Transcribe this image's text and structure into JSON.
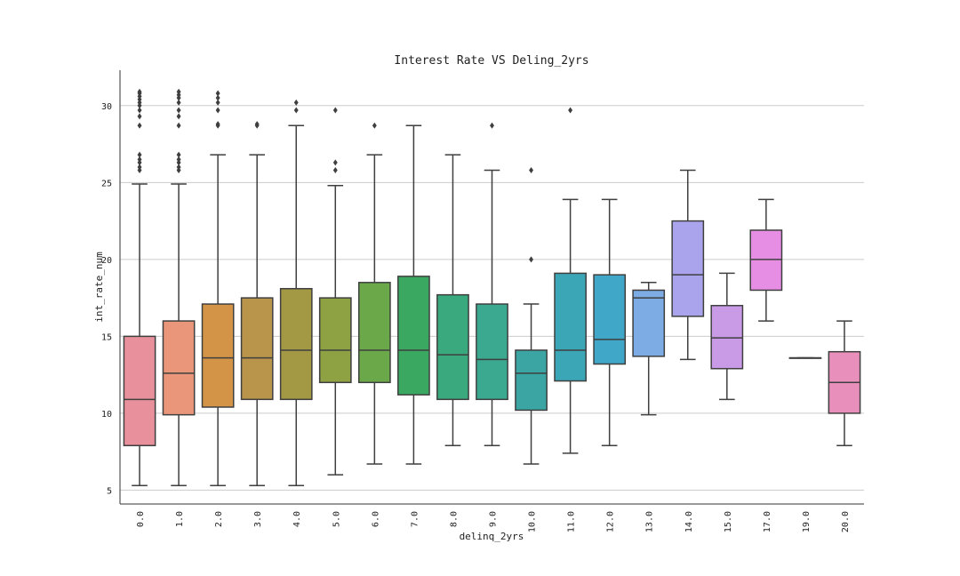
{
  "chart_data": {
    "type": "box",
    "title": "Interest Rate VS Deling_2yrs",
    "xlabel": "delinq_2yrs",
    "ylabel": "int_rate_num",
    "ylim": [
      4.1,
      32.3
    ],
    "yticks": [
      5,
      10,
      15,
      20,
      25,
      30
    ],
    "grid": "horizontal",
    "categories": [
      "0.0",
      "1.0",
      "2.0",
      "3.0",
      "4.0",
      "5.0",
      "6.0",
      "7.0",
      "8.0",
      "9.0",
      "10.0",
      "11.0",
      "12.0",
      "13.0",
      "14.0",
      "15.0",
      "17.0",
      "19.0",
      "20.0"
    ],
    "boxes": [
      {
        "category": "0.0",
        "whisker_low": 5.3,
        "q1": 7.9,
        "median": 10.9,
        "q3": 15.0,
        "whisker_high": 24.9,
        "outliers": [
          25.8,
          26.0,
          26.3,
          26.5,
          26.8,
          28.7,
          29.3,
          29.7,
          30.0,
          30.2,
          30.4,
          30.6,
          30.8,
          30.9
        ],
        "color": "#e8919c"
      },
      {
        "category": "1.0",
        "whisker_low": 5.3,
        "q1": 9.9,
        "median": 12.6,
        "q3": 16.0,
        "whisker_high": 24.9,
        "outliers": [
          25.8,
          26.0,
          26.3,
          26.5,
          26.8,
          28.7,
          29.3,
          29.7,
          30.2,
          30.5,
          30.7,
          30.9
        ],
        "color": "#e9967a"
      },
      {
        "category": "2.0",
        "whisker_low": 5.3,
        "q1": 10.4,
        "median": 13.6,
        "q3": 17.1,
        "whisker_high": 26.8,
        "outliers": [
          28.7,
          28.8,
          29.7,
          30.2,
          30.5,
          30.8
        ],
        "color": "#d39448"
      },
      {
        "category": "3.0",
        "whisker_low": 5.3,
        "q1": 10.9,
        "median": 13.6,
        "q3": 17.5,
        "whisker_high": 26.8,
        "outliers": [
          28.7,
          28.8
        ],
        "color": "#b8954a"
      },
      {
        "category": "4.0",
        "whisker_low": 5.3,
        "q1": 10.9,
        "median": 14.1,
        "q3": 18.1,
        "whisker_high": 28.7,
        "outliers": [
          29.7,
          30.2
        ],
        "color": "#a39944"
      },
      {
        "category": "5.0",
        "whisker_low": 6.0,
        "q1": 12.0,
        "median": 14.1,
        "q3": 17.5,
        "whisker_high": 24.8,
        "outliers": [
          25.8,
          26.3,
          29.7
        ],
        "color": "#8ea244"
      },
      {
        "category": "6.0",
        "whisker_low": 6.7,
        "q1": 12.0,
        "median": 14.1,
        "q3": 18.5,
        "whisker_high": 26.8,
        "outliers": [
          28.7
        ],
        "color": "#6aa84a"
      },
      {
        "category": "7.0",
        "whisker_low": 6.7,
        "q1": 11.2,
        "median": 14.1,
        "q3": 18.9,
        "whisker_high": 28.7,
        "outliers": [],
        "color": "#3ba862"
      },
      {
        "category": "8.0",
        "whisker_low": 7.9,
        "q1": 10.9,
        "median": 13.8,
        "q3": 17.7,
        "whisker_high": 26.8,
        "outliers": [],
        "color": "#3aaa7e"
      },
      {
        "category": "9.0",
        "whisker_low": 7.9,
        "q1": 10.9,
        "median": 13.5,
        "q3": 17.1,
        "whisker_high": 25.8,
        "outliers": [
          28.7
        ],
        "color": "#3ba890"
      },
      {
        "category": "10.0",
        "whisker_low": 6.7,
        "q1": 10.2,
        "median": 12.6,
        "q3": 14.1,
        "whisker_high": 17.1,
        "outliers": [
          20.0,
          25.8
        ],
        "color": "#3aa5a2"
      },
      {
        "category": "11.0",
        "whisker_low": 7.4,
        "q1": 12.1,
        "median": 14.1,
        "q3": 19.1,
        "whisker_high": 23.9,
        "outliers": [
          29.7
        ],
        "color": "#3aa6b6"
      },
      {
        "category": "12.0",
        "whisker_low": 7.9,
        "q1": 13.2,
        "median": 14.8,
        "q3": 19.0,
        "whisker_high": 23.9,
        "outliers": [],
        "color": "#40a7c8"
      },
      {
        "category": "13.0",
        "whisker_low": 9.9,
        "q1": 13.7,
        "median": 17.5,
        "q3": 18.0,
        "whisker_high": 18.5,
        "outliers": [],
        "color": "#7dabe3"
      },
      {
        "category": "14.0",
        "whisker_low": 13.5,
        "q1": 16.3,
        "median": 19.0,
        "q3": 22.5,
        "whisker_high": 25.8,
        "outliers": [],
        "color": "#a9a4ec"
      },
      {
        "category": "15.0",
        "whisker_low": 10.9,
        "q1": 12.9,
        "median": 14.9,
        "q3": 17.0,
        "whisker_high": 19.1,
        "outliers": [],
        "color": "#c99ae6"
      },
      {
        "category": "17.0",
        "whisker_low": 16.0,
        "q1": 18.0,
        "median": 20.0,
        "q3": 21.9,
        "whisker_high": 23.9,
        "outliers": [],
        "color": "#e68ee3"
      },
      {
        "category": "19.0",
        "whisker_low": 13.6,
        "q1": 13.6,
        "median": 13.6,
        "q3": 13.6,
        "whisker_high": 13.6,
        "outliers": [],
        "color": "#e98ccd"
      },
      {
        "category": "20.0",
        "whisker_low": 7.9,
        "q1": 10.0,
        "median": 12.0,
        "q3": 14.0,
        "whisker_high": 16.0,
        "outliers": [],
        "color": "#e88fbc"
      }
    ]
  }
}
